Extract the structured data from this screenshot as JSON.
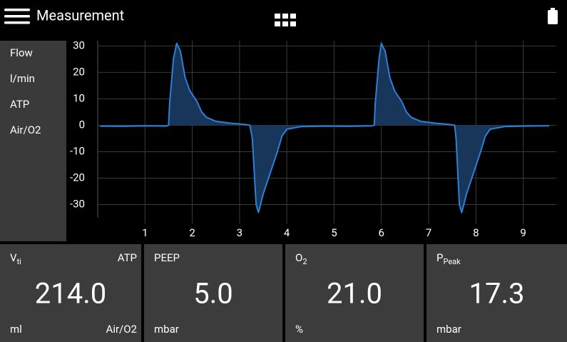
{
  "header": {
    "title": "Measurement"
  },
  "side_labels": [
    "Flow",
    "l/min",
    "ATP",
    "Air/O2"
  ],
  "chart_data": {
    "type": "line",
    "x": [
      0.05,
      0.5,
      1.0,
      1.45,
      1.5,
      1.52,
      1.6,
      1.67,
      1.75,
      1.85,
      1.95,
      2.1,
      2.2,
      2.3,
      2.5,
      2.8,
      3.1,
      3.22,
      3.27,
      3.35,
      3.4,
      3.5,
      3.65,
      3.8,
      3.9,
      4.0,
      4.3,
      4.8,
      5.3,
      5.8,
      5.85,
      5.87,
      5.95,
      6.0,
      6.08,
      6.18,
      6.28,
      6.43,
      6.53,
      6.63,
      6.83,
      7.13,
      7.43,
      7.55,
      7.58,
      7.65,
      7.7,
      7.8,
      7.95,
      8.1,
      8.2,
      8.3,
      8.6,
      9.0,
      9.55
    ],
    "values": [
      -0.3,
      -0.4,
      -0.2,
      -0.3,
      0,
      8,
      25,
      31,
      28,
      18,
      13,
      9,
      5,
      3,
      1.5,
      0.8,
      0.3,
      0,
      -5,
      -30,
      -33,
      -26,
      -18,
      -10,
      -4,
      -1.5,
      -0.5,
      -0.3,
      -0.4,
      -0.2,
      0,
      8,
      25,
      31,
      28,
      18,
      13,
      9,
      5,
      3,
      1.5,
      0.8,
      0.3,
      0,
      -5,
      -30,
      -33,
      -26,
      -18,
      -10,
      -4,
      -1.5,
      -0.5,
      -0.3,
      -0.2
    ],
    "color": "#2f7fd6",
    "fill_color": "#17365a",
    "xlim": [
      0,
      9.7
    ],
    "ylim": [
      -35,
      32
    ],
    "xticks": [
      1,
      2,
      3,
      4,
      5,
      6,
      7,
      8,
      9
    ],
    "yticks": [
      30,
      20,
      10,
      0,
      -10,
      -20,
      -30
    ],
    "grid": true
  },
  "tiles": [
    {
      "label": "V",
      "label_sub": "ti",
      "corner": "ATP",
      "value": "214.0",
      "unit": "ml",
      "unit_right": "Air/O2"
    },
    {
      "label": "PEEP",
      "value": "5.0",
      "unit": "mbar"
    },
    {
      "label": "O",
      "label_sub": "2",
      "value": "21.0",
      "unit": "%"
    },
    {
      "label": "P",
      "label_sub": "Peak",
      "value": "17.3",
      "unit": "mbar"
    }
  ]
}
